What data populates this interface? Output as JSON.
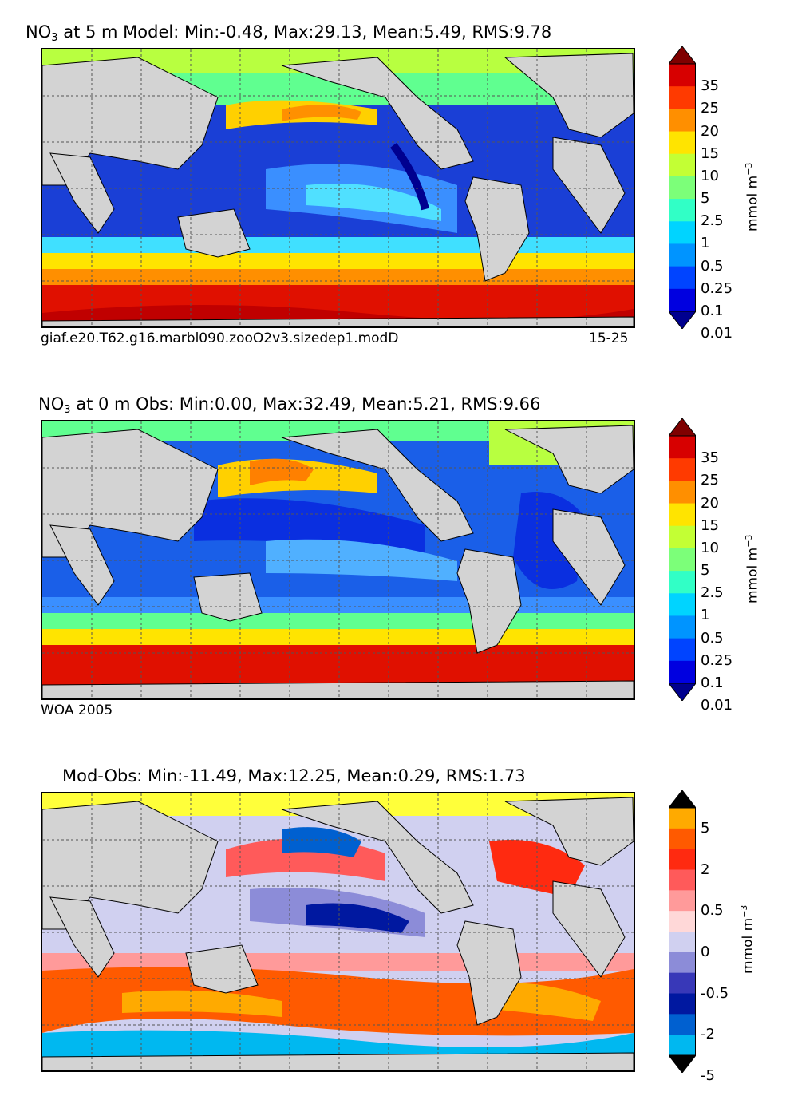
{
  "panels": [
    {
      "title_prefix": "NO",
      "title_sub": "3",
      "title_rest": " at 5 m Model: Min:-0.48, Max:29.13, Mean:5.49, RMS:9.78",
      "caption_left": "giaf.e20.T62.g16.marbl090.zooO2v3.sizedep1.modD",
      "caption_right": "15-25",
      "colorbar": {
        "label": "mmol m",
        "label_exp": "−3",
        "ticks": [
          "35",
          "25",
          "20",
          "15",
          "10",
          "5",
          "2.5",
          "1",
          "0.5",
          "0.25",
          "0.1",
          "0.01"
        ],
        "colors": [
          "#7f0000",
          "#d70000",
          "#ff3a00",
          "#ff8f00",
          "#ffe400",
          "#c3ff34",
          "#7cff79",
          "#31ffc6",
          "#00d4ff",
          "#0094ff",
          "#0044ff",
          "#0000e0",
          "#00008f"
        ]
      }
    },
    {
      "title_prefix": "NO",
      "title_sub": "3",
      "title_rest": " at 0 m Obs: Min:0.00, Max:32.49, Mean:5.21, RMS:9.66",
      "caption_left": "WOA 2005",
      "caption_right": "",
      "colorbar": {
        "label": "mmol m",
        "label_exp": "−3",
        "ticks": [
          "35",
          "25",
          "20",
          "15",
          "10",
          "5",
          "2.5",
          "1",
          "0.5",
          "0.25",
          "0.1",
          "0.01"
        ],
        "colors": [
          "#7f0000",
          "#d70000",
          "#ff3a00",
          "#ff8f00",
          "#ffe400",
          "#c3ff34",
          "#7cff79",
          "#31ffc6",
          "#00d4ff",
          "#0094ff",
          "#0044ff",
          "#0000e0",
          "#00008f"
        ]
      }
    },
    {
      "title_prefix": "",
      "title_sub": "",
      "title_rest": "Mod-Obs: Min:-11.49, Max:12.25, Mean:0.29, RMS:1.73",
      "caption_left": "",
      "caption_right": "",
      "colorbar": {
        "label": "mmol m",
        "label_exp": "−3",
        "ticks": [
          "5",
          "2",
          "0.5",
          "0",
          "-0.5",
          "-2",
          "-5"
        ],
        "colors": [
          "#ffff3a",
          "#ffaa00",
          "#ff5a00",
          "#ff2a10",
          "#ff5a5a",
          "#ff9a9a",
          "#ffd8d8",
          "#d0d0f0",
          "#8c8cd8",
          "#3838b8",
          "#0018a0",
          "#0060d0",
          "#00b8f0",
          "#40ffff"
        ]
      }
    }
  ],
  "colors": {
    "land": "#d3d3d3",
    "frame": "#000000",
    "grid": "#555555"
  }
}
